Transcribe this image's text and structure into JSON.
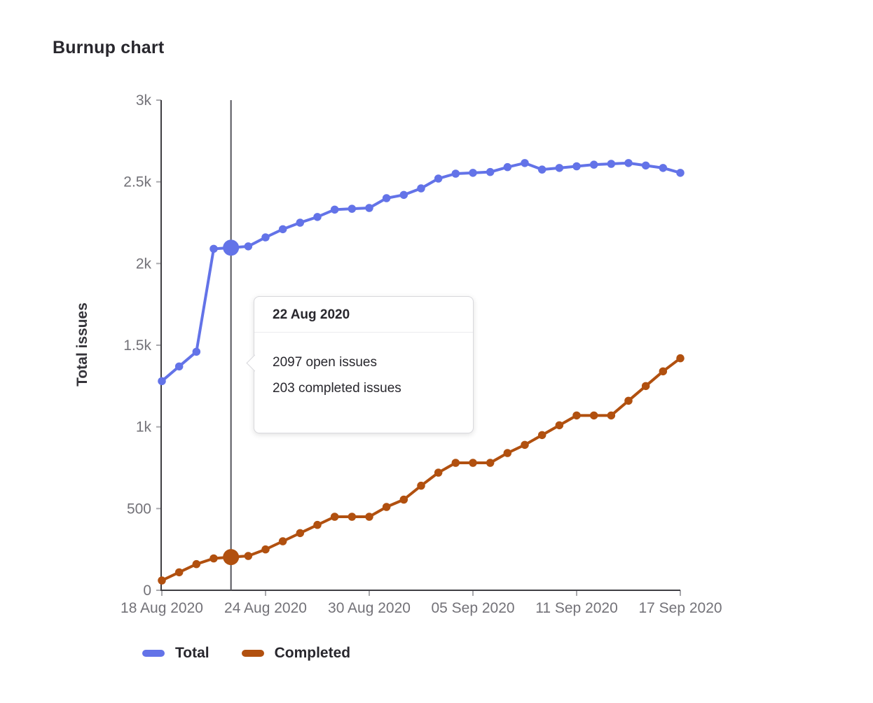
{
  "page": {
    "title": "Burnup chart"
  },
  "chart_data": {
    "type": "line",
    "title": "Burnup chart",
    "xlabel": "",
    "ylabel": "Total issues",
    "ylim": [
      0,
      3000
    ],
    "grid": false,
    "legend_position": "bottom-left",
    "num_points": 31,
    "x_tick_labels": [
      "18 Aug 2020",
      "24 Aug 2020",
      "30 Aug 2020",
      "05 Sep 2020",
      "11 Sep 2020",
      "17 Sep 2020"
    ],
    "x_tick_indices": [
      0,
      6,
      12,
      18,
      24,
      30
    ],
    "y_tick_labels": [
      "0",
      "500",
      "1k",
      "1.5k",
      "2k",
      "2.5k",
      "3k"
    ],
    "y_tick_values": [
      0,
      500,
      1000,
      1500,
      2000,
      2500,
      3000
    ],
    "highlight_index": 4,
    "highlight_date": "22 Aug 2020",
    "series": [
      {
        "name": "Total",
        "color": "#6373e8",
        "values": [
          1280,
          1370,
          1460,
          2090,
          2097,
          2105,
          2160,
          2210,
          2250,
          2285,
          2330,
          2335,
          2340,
          2400,
          2420,
          2460,
          2520,
          2550,
          2555,
          2560,
          2590,
          2615,
          2575,
          2585,
          2595,
          2605,
          2610,
          2615,
          2600,
          2585,
          2555
        ]
      },
      {
        "name": "Completed",
        "color": "#b1500f",
        "values": [
          60,
          110,
          160,
          195,
          203,
          210,
          250,
          300,
          350,
          400,
          450,
          450,
          450,
          510,
          555,
          640,
          720,
          780,
          780,
          780,
          840,
          890,
          950,
          1010,
          1070,
          1070,
          1070,
          1160,
          1250,
          1340,
          1420
        ]
      }
    ]
  },
  "tooltip": {
    "title": "22 Aug 2020",
    "lines": [
      "2097 open issues",
      "203 completed issues"
    ]
  },
  "legend": {
    "items": [
      {
        "label": "Total",
        "color": "#6373e8"
      },
      {
        "label": "Completed",
        "color": "#b1500f"
      }
    ]
  },
  "colors": {
    "axis_line": "#3f3e43",
    "tick_mark": "#a9a9ad",
    "tick_label": "#737278",
    "highlight_line": "#54545c",
    "text_dark": "#28272d"
  }
}
